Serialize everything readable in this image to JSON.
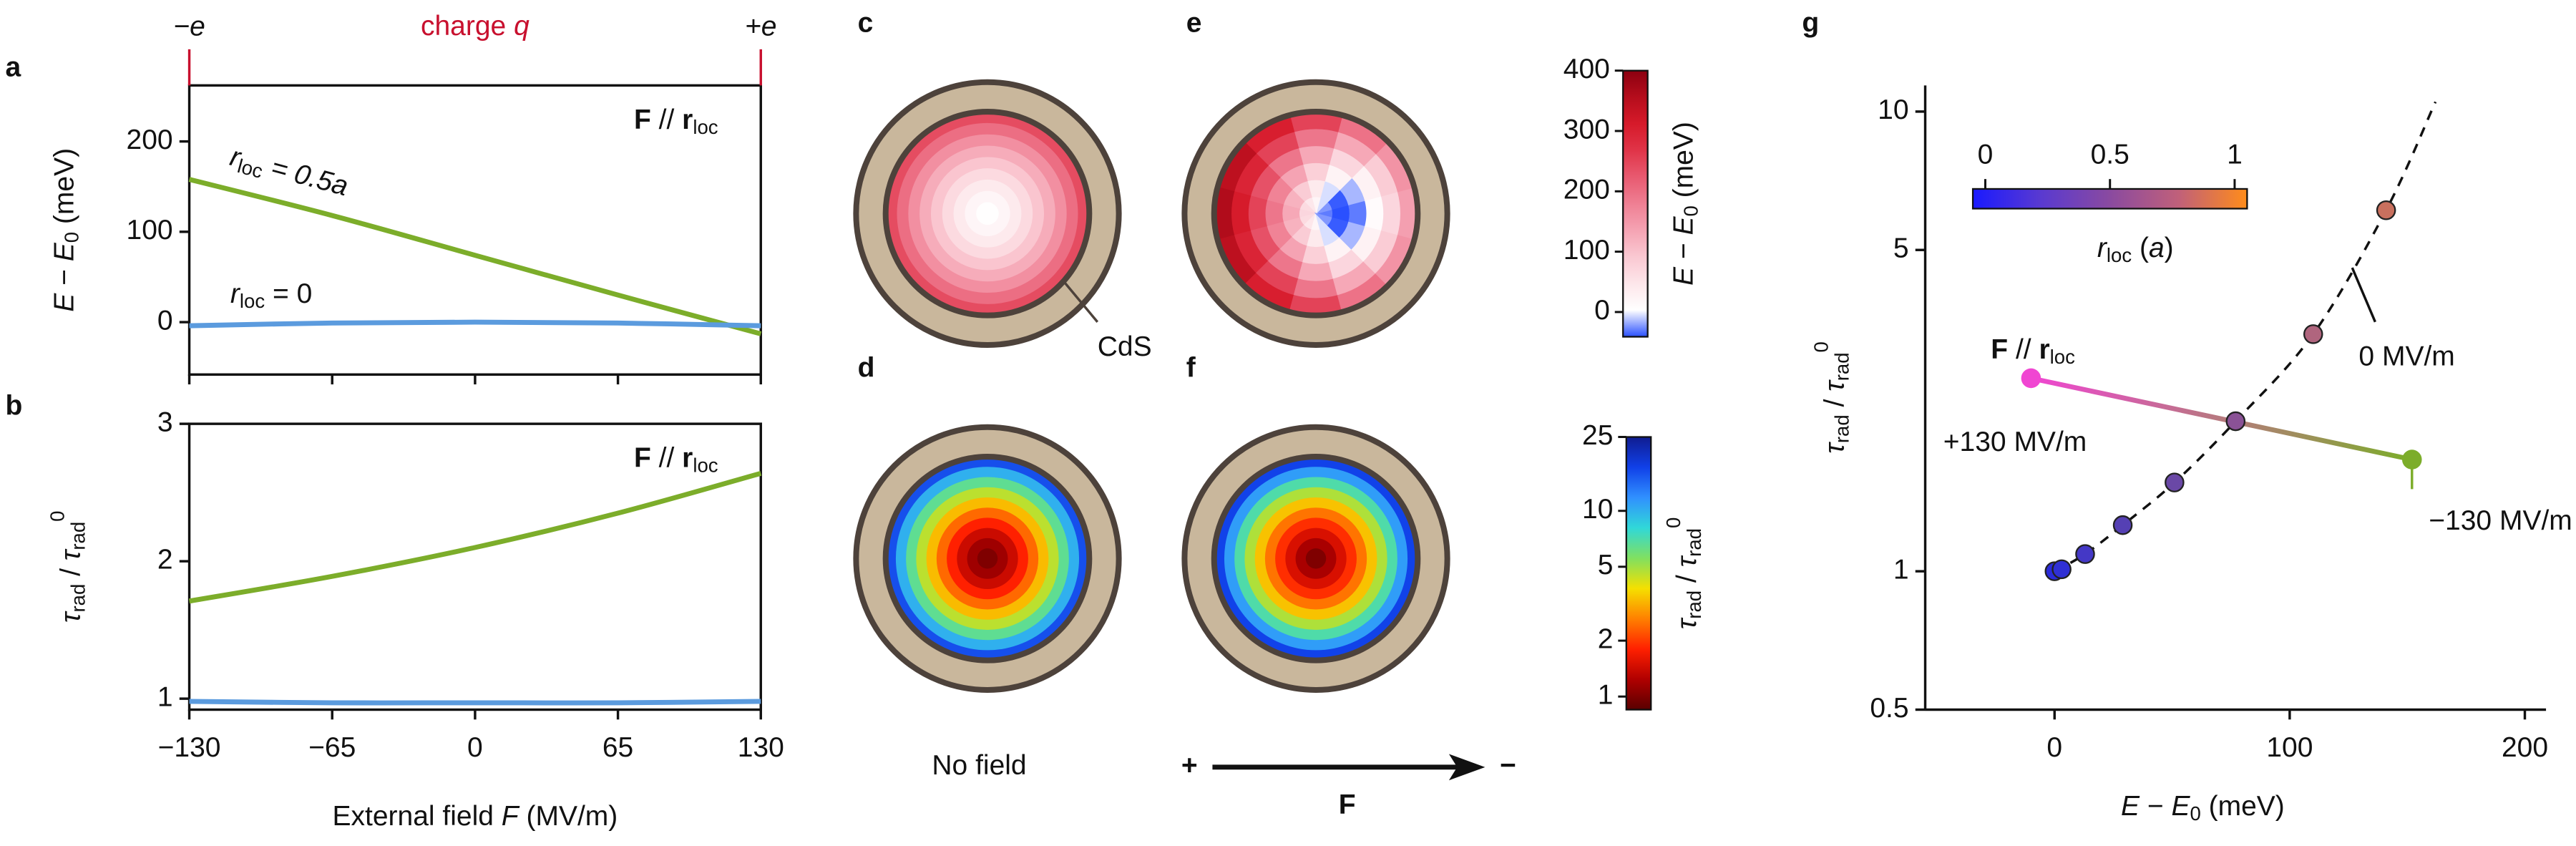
{
  "chart_data": [
    {
      "type": "line",
      "label": "a",
      "x": [
        -130,
        -65,
        0,
        65,
        130
      ],
      "xlim": [
        -130,
        130
      ],
      "xticks": [
        {
          "value": -130,
          "label": "−130"
        },
        {
          "value": -65,
          "label": "−65"
        },
        0,
        65,
        130
      ],
      "ylim": [
        -58,
        262
      ],
      "yticks": [
        0,
        100,
        200
      ],
      "ylabel": [
        "E",
        " − ",
        "E",
        "0",
        " (meV)"
      ],
      "top_axis": {
        "labels": [
          "−e",
          "charge ",
          "q",
          "+e"
        ],
        "color": "#c8102e"
      },
      "annotation": [
        "F",
        " // ",
        "r",
        "loc"
      ],
      "series": [
        {
          "name": [
            "r",
            "loc",
            " = 0.5a"
          ],
          "color": "#7cad2a",
          "values": [
            158,
            118,
            74,
            30,
            -13
          ]
        },
        {
          "name": [
            "r",
            "loc",
            " = 0"
          ],
          "color": "#5b9bde",
          "values": [
            -4,
            -1,
            0,
            -1,
            -4
          ]
        }
      ]
    },
    {
      "type": "line",
      "label": "b",
      "x": [
        -130,
        -65,
        0,
        65,
        130
      ],
      "xlim": [
        -130,
        130
      ],
      "xticks": [
        {
          "value": -130,
          "label": "−130"
        },
        {
          "value": -65,
          "label": "−65"
        },
        0,
        65,
        130
      ],
      "xlabel": [
        "External field ",
        "F",
        " (MV/m)"
      ],
      "ylim": [
        0.92,
        3
      ],
      "yticks": [
        1,
        2,
        3
      ],
      "ylabel": [
        "τ",
        "rad",
        " / ",
        "τ",
        "rad",
        "0"
      ],
      "annotation": [
        "F",
        " // ",
        "r",
        "loc"
      ],
      "series": [
        {
          "color": "#7cad2a",
          "values": [
            1.71,
            1.89,
            2.1,
            2.35,
            2.64
          ]
        },
        {
          "color": "#5b9bde",
          "values": [
            0.98,
            0.97,
            0.97,
            0.97,
            0.98
          ]
        }
      ]
    },
    {
      "type": "heatmap",
      "label": "c",
      "ring_values": [
        5,
        20,
        40,
        65,
        95,
        125,
        160,
        200,
        240
      ],
      "annotation": "CdS"
    },
    {
      "type": "heatmap",
      "label": "d",
      "ring_values": [
        1,
        1.15,
        1.4,
        1.8,
        2.4,
        3.3,
        4.6,
        6.5,
        10,
        16
      ],
      "caption": "No field"
    },
    {
      "type": "heatmap",
      "label": "e",
      "polar_values": [
        [
          -30,
          -23,
          -5,
          20,
          45,
          63,
          70,
          63,
          45,
          20,
          -5,
          -23
        ],
        [
          -50,
          -38,
          -5,
          40,
          85,
          118,
          130,
          118,
          85,
          40,
          -5,
          -38
        ],
        [
          -30,
          -15,
          25,
          80,
          135,
          175,
          190,
          175,
          135,
          80,
          25,
          -15
        ],
        [
          10,
          26,
          70,
          130,
          190,
          234,
          250,
          234,
          190,
          130,
          70,
          26
        ],
        [
          70,
          86,
          130,
          190,
          250,
          294,
          310,
          294,
          250,
          190,
          130,
          86
        ],
        [
          140,
          155,
          195,
          250,
          305,
          345,
          360,
          345,
          305,
          250,
          195,
          155
        ]
      ]
    },
    {
      "type": "heatmap",
      "label": "f",
      "ring_values": [
        1,
        1.2,
        1.5,
        1.9,
        2.5,
        3.4,
        4.8,
        7,
        11,
        17
      ],
      "caption": [
        "+",
        "F",
        "−"
      ]
    },
    {
      "type": "colorbar",
      "ylim": [
        -41,
        400
      ],
      "yticks": [
        0,
        100,
        200,
        300,
        400
      ],
      "label": [
        "E",
        " − ",
        "E",
        "0",
        " (meV)"
      ],
      "colors": [
        "#2a50ff",
        "#ffffff",
        "#fde6ea",
        "#fac8d2",
        "#f5a3b3",
        "#ef7f93",
        "#e85a70",
        "#e03448",
        "#d61a2a",
        "#b50d1c",
        "#8c0010"
      ]
    },
    {
      "type": "colorbar",
      "log_scale": true,
      "ylim": [
        0.85,
        25
      ],
      "yticks": [
        1,
        2,
        5,
        10,
        25
      ],
      "label": [
        "τ",
        "rad",
        " / ",
        "τ",
        "rad",
        "0"
      ],
      "colors": [
        "#5a0000",
        "#b00000",
        "#ff2000",
        "#ff8000",
        "#f5e000",
        "#80e060",
        "#30d8d8",
        "#3090ff",
        "#1040e8",
        "#101c90"
      ]
    },
    {
      "type": "scatter",
      "label": "g",
      "log_y": true,
      "xlim": [
        -55,
        209
      ],
      "xticks": [
        0,
        100,
        200
      ],
      "xlabel": [
        "E",
        " − ",
        "E",
        "0",
        " (meV)"
      ],
      "ylim": [
        0.5,
        11.4
      ],
      "yticks": [
        0.5,
        1,
        5,
        10
      ],
      "ylabel": [
        "τ",
        "rad",
        " / ",
        "τ",
        "rad",
        "0"
      ],
      "x": [
        0,
        3,
        13,
        29,
        51,
        77,
        110,
        141
      ],
      "values": [
        1.0,
        1.01,
        1.09,
        1.26,
        1.56,
        2.12,
        3.28,
        6.1
      ],
      "point_colors": [
        "#2b2bd9",
        "#3030d4",
        "#4438c6",
        "#5540b4",
        "#6a48a6",
        "#8a5296",
        "#b0657e",
        "#c9705e"
      ],
      "series": [
        {
          "name": "0 MV/m",
          "color": "#111111",
          "dashed": true,
          "x": [
            0,
            13,
            29,
            51,
            77,
            110,
            141,
            162
          ],
          "values": [
            1.0,
            1.09,
            1.26,
            1.56,
            2.12,
            3.28,
            6.1,
            10.5
          ]
        },
        {
          "name": [
            "F",
            " // ",
            "r",
            "loc"
          ],
          "colors": [
            "#f046d2",
            "#7cad2a"
          ],
          "label_color": "#444c55",
          "x": [
            -10,
            152
          ],
          "values": [
            2.63,
            1.75
          ],
          "start_label": "+130 MV/m",
          "end_label": "−130 MV/m"
        }
      ],
      "colorbar": {
        "xlim": [
          -0.05,
          1.05
        ],
        "xticks": [
          0,
          0.5,
          1
        ],
        "label": [
          "r",
          "loc",
          " (",
          "a",
          ")"
        ],
        "colors": [
          "#1a1aff",
          "#5a3ad0",
          "#8a4aa0",
          "#c0607a",
          "#ff8c1a"
        ]
      }
    }
  ]
}
